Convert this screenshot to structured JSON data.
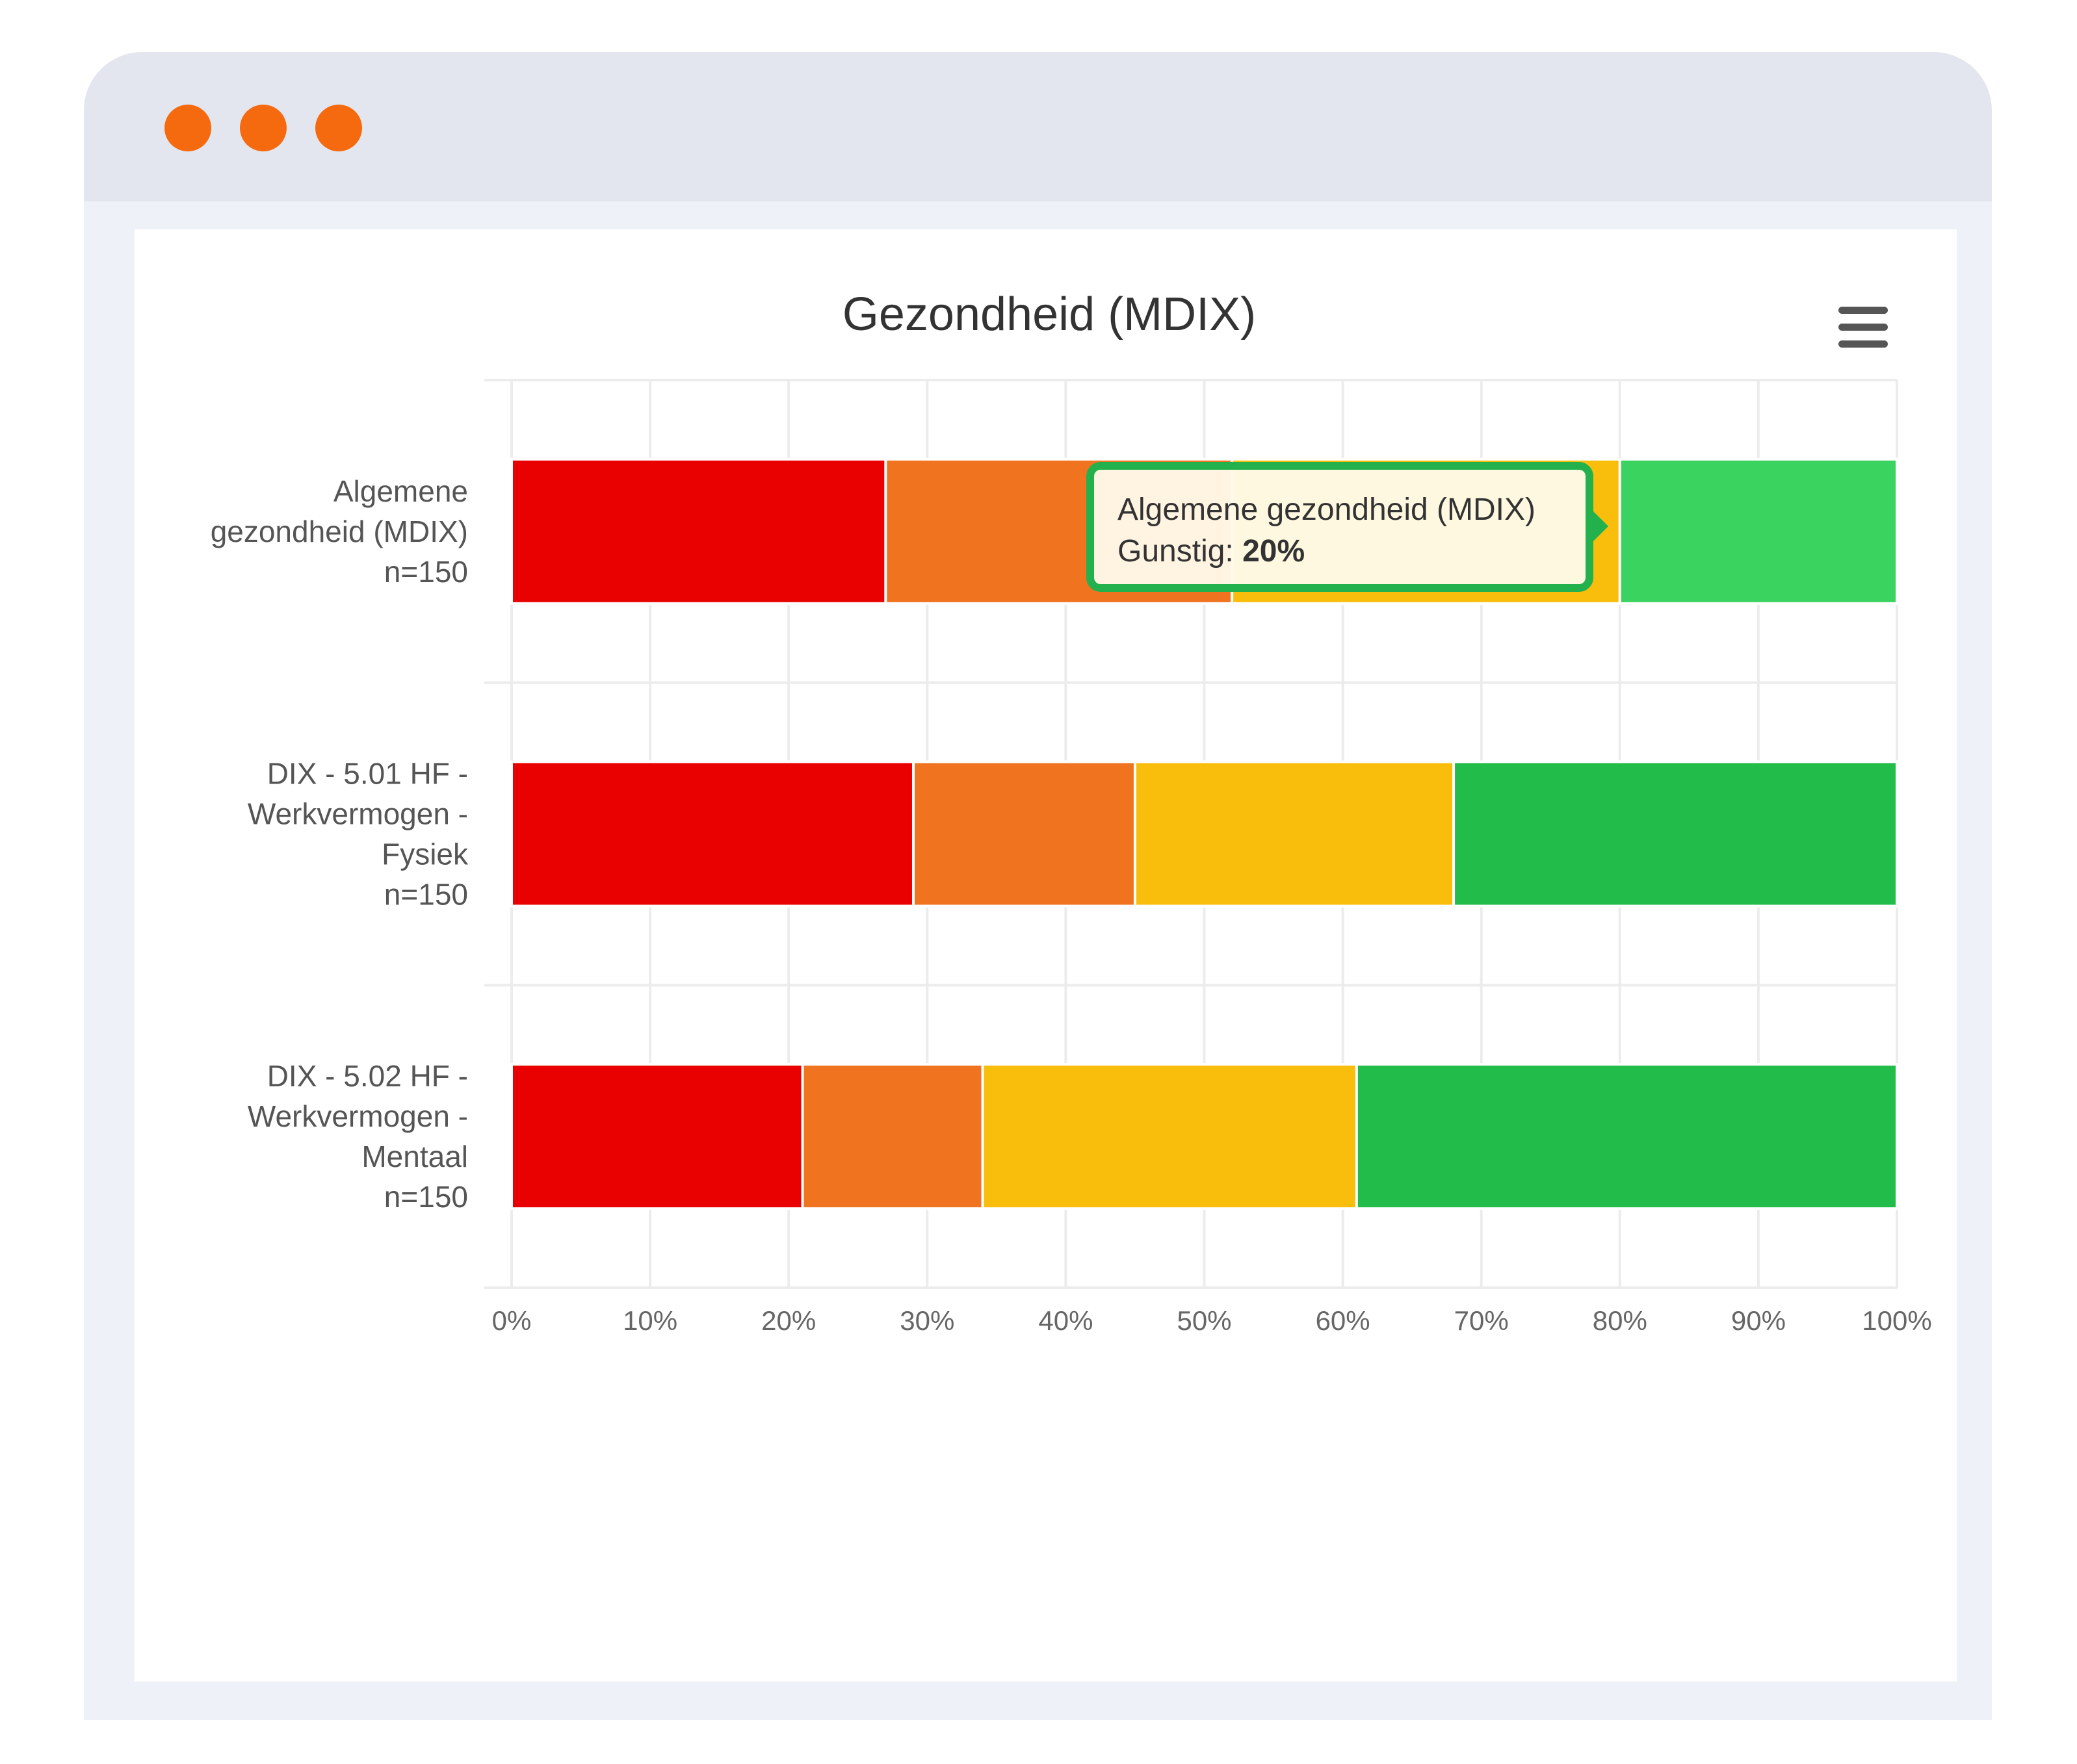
{
  "window": {
    "controls": [
      "close-dot",
      "minimize-dot",
      "maximize-dot"
    ],
    "control_color": "#f56a0f"
  },
  "chart": {
    "title": "Gezondheid (MDIX)",
    "menu_icon": "hamburger-menu-icon",
    "tooltip": {
      "category": "Algemene gezondheid (MDIX)",
      "series_label": "Gunstig: ",
      "value_text": "20%"
    }
  },
  "chart_data": {
    "type": "bar",
    "orientation": "horizontal",
    "stacking": "percent",
    "title": "Gezondheid (MDIX)",
    "categories": [
      [
        "Algemene",
        "gezondheid (MDIX)",
        "n=150"
      ],
      [
        "DIX - 5.01 HF -",
        "Werkvermogen -",
        "Fysiek",
        "n=150"
      ],
      [
        "DIX - 5.02 HF -",
        "Werkvermogen -",
        "Mentaal",
        "n=150"
      ]
    ],
    "series": [
      {
        "color": "#e90000",
        "values": [
          27,
          29,
          21
        ]
      },
      {
        "color": "#f07320",
        "values": [
          25,
          16,
          13
        ]
      },
      {
        "color": "#f9be0b",
        "values": [
          28,
          23,
          27
        ]
      },
      {
        "name": "Gunstig",
        "color": "#22bc4a",
        "values": [
          20,
          32,
          39
        ]
      }
    ],
    "highlight": {
      "category_index": 0,
      "series_index": 3,
      "color": "#3bd360"
    },
    "xlim": [
      0,
      100
    ],
    "x_ticks": [
      "0%",
      "10%",
      "20%",
      "30%",
      "40%",
      "50%",
      "60%",
      "70%",
      "80%",
      "90%",
      "100%"
    ],
    "grid": true,
    "legend": "none"
  }
}
